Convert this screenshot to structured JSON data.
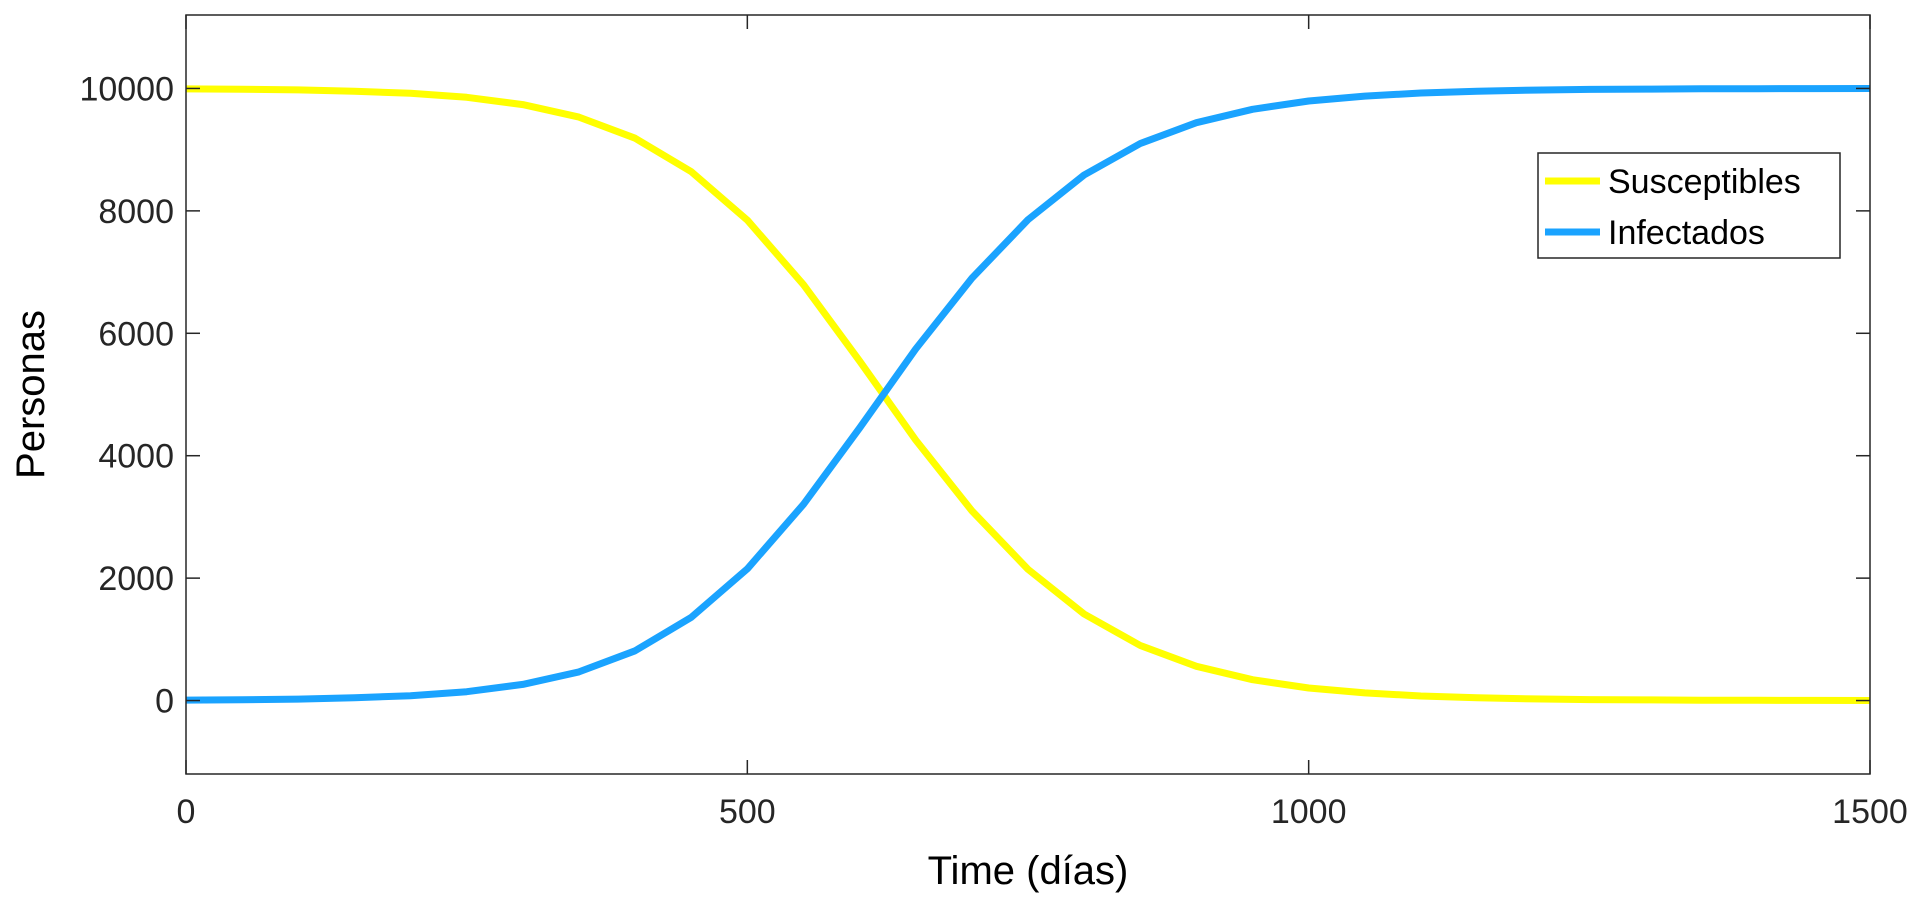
{
  "chart_data": {
    "type": "line",
    "xlabel": "Time (días)",
    "ylabel": "Personas",
    "xlim": [
      0,
      1500
    ],
    "ylim": [
      -1200,
      11200
    ],
    "xticks": [
      0,
      500,
      1000,
      1500
    ],
    "xtick_labels": [
      "0",
      "500",
      "1000",
      "1500"
    ],
    "yticks": [
      0,
      2000,
      4000,
      6000,
      8000,
      10000
    ],
    "ytick_labels": [
      "0",
      "2000",
      "4000",
      "6000",
      "8000",
      "10000"
    ],
    "grid": false,
    "legend_position": "top-right",
    "x": [
      0,
      50,
      100,
      150,
      200,
      250,
      300,
      350,
      400,
      450,
      500,
      550,
      600,
      650,
      700,
      750,
      800,
      850,
      900,
      950,
      1000,
      1050,
      1100,
      1150,
      1200,
      1250,
      1300,
      1350,
      1400,
      1450,
      1500
    ],
    "series": [
      {
        "name": "Susceptibles",
        "color": "#ffff00",
        "values": [
          9993,
          9987,
          9976,
          9955,
          9920,
          9855,
          9736,
          9532,
          9188,
          8642,
          7850,
          6794,
          5547,
          4257,
          3100,
          2145,
          1414,
          900,
          560,
          340,
          205,
          125,
          75,
          45,
          27,
          16,
          10,
          6,
          4,
          2,
          1
        ]
      },
      {
        "name": "Infectados",
        "color": "#1aa3ff",
        "values": [
          7,
          13,
          24,
          45,
          80,
          145,
          264,
          468,
          812,
          1358,
          2150,
          3206,
          4453,
          5743,
          6900,
          7855,
          8586,
          9100,
          9440,
          9660,
          9795,
          9875,
          9925,
          9955,
          9973,
          9984,
          9990,
          9994,
          9996,
          9998,
          9999
        ]
      }
    ]
  }
}
